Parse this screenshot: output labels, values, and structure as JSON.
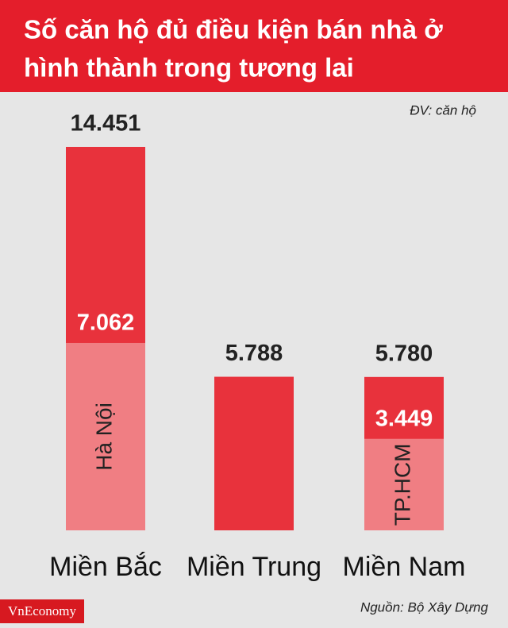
{
  "chart_data": {
    "type": "bar",
    "title": [
      "Số căn hộ đủ điều kiện bán nhà ở",
      "hình thành trong tương lai"
    ],
    "unit_note": "ĐV: căn hộ",
    "source": "Nguồn: Bộ Xây Dựng",
    "brand": "VnEconomy",
    "categories": [
      "Miền Bắc",
      "Miền Trung",
      "Miền Nam"
    ],
    "values": [
      14451,
      5788,
      5780
    ],
    "value_labels": [
      "14.451",
      "5.788",
      "5.780"
    ],
    "color": "#e8323c",
    "sub_values": [
      7062,
      null,
      3449
    ],
    "sub_value_labels": [
      "7.062",
      null,
      "3.449"
    ],
    "sub_labels": [
      "Hà Nội",
      null,
      "TP.HCM"
    ],
    "sub_color": "#f07e83"
  }
}
